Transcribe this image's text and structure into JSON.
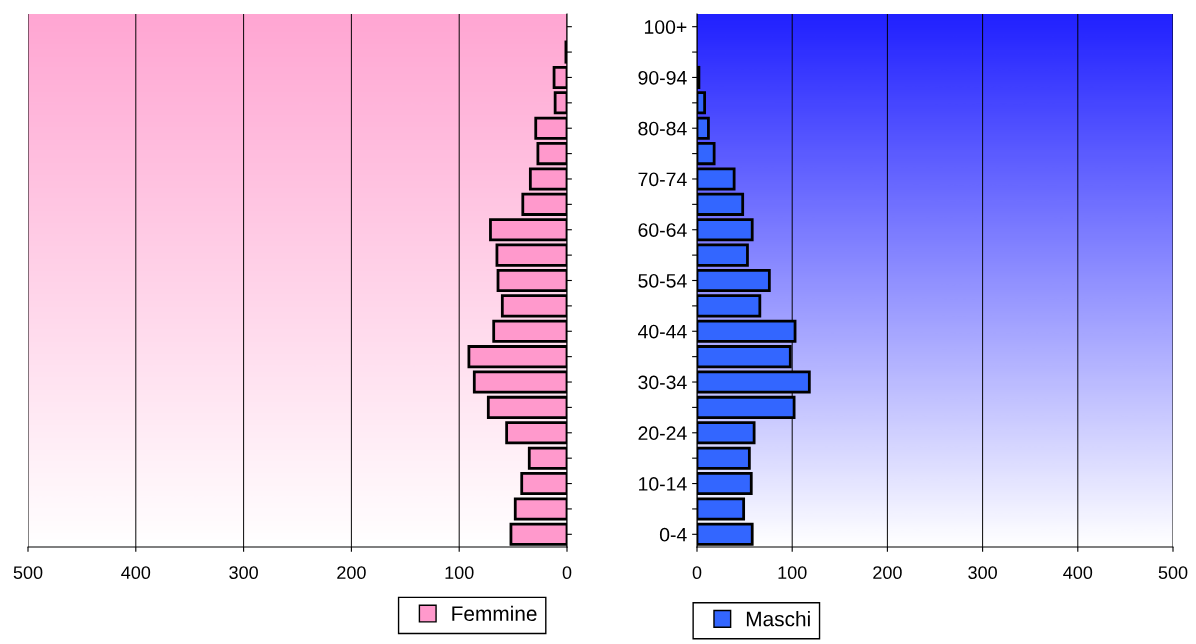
{
  "chart_data": [
    {
      "type": "bar",
      "orientation": "horizontal",
      "categories": [
        null,
        null,
        null,
        null,
        null,
        null,
        null,
        null,
        null,
        null,
        null,
        null,
        null,
        null,
        null,
        null,
        null,
        null,
        null,
        null,
        null
      ],
      "series": [
        {
          "name": "Femmine",
          "color": "#ff99cc",
          "values": [
            null,
            1,
            12,
            11,
            29,
            27,
            34,
            41,
            71,
            65,
            64,
            60,
            68,
            91,
            86,
            73,
            56,
            35,
            42,
            48,
            52
          ]
        }
      ],
      "xlim": [
        500,
        0
      ],
      "xticks": [
        500,
        400,
        300,
        200,
        100,
        0
      ],
      "grid": "x",
      "legend": "bottom",
      "tick_labels": "x"
    },
    {
      "type": "bar",
      "orientation": "horizontal",
      "categories": [
        "100+",
        null,
        "90-94",
        null,
        "80-84",
        null,
        "70-74",
        null,
        "60-64",
        null,
        "50-54",
        null,
        "40-44",
        null,
        "30-34",
        null,
        "20-24",
        null,
        "10-14",
        null,
        "0-4"
      ],
      "series": [
        {
          "name": "Maschi",
          "color": "#3366ff",
          "values": [
            null,
            null,
            2,
            8,
            12,
            18,
            39,
            48,
            58,
            53,
            76,
            66,
            103,
            98,
            118,
            102,
            60,
            55,
            57,
            49,
            58
          ]
        }
      ],
      "xlim": [
        0,
        500
      ],
      "xticks": [
        0,
        100,
        200,
        300,
        400,
        500
      ],
      "grid": "x",
      "legend": "bottom"
    }
  ]
}
